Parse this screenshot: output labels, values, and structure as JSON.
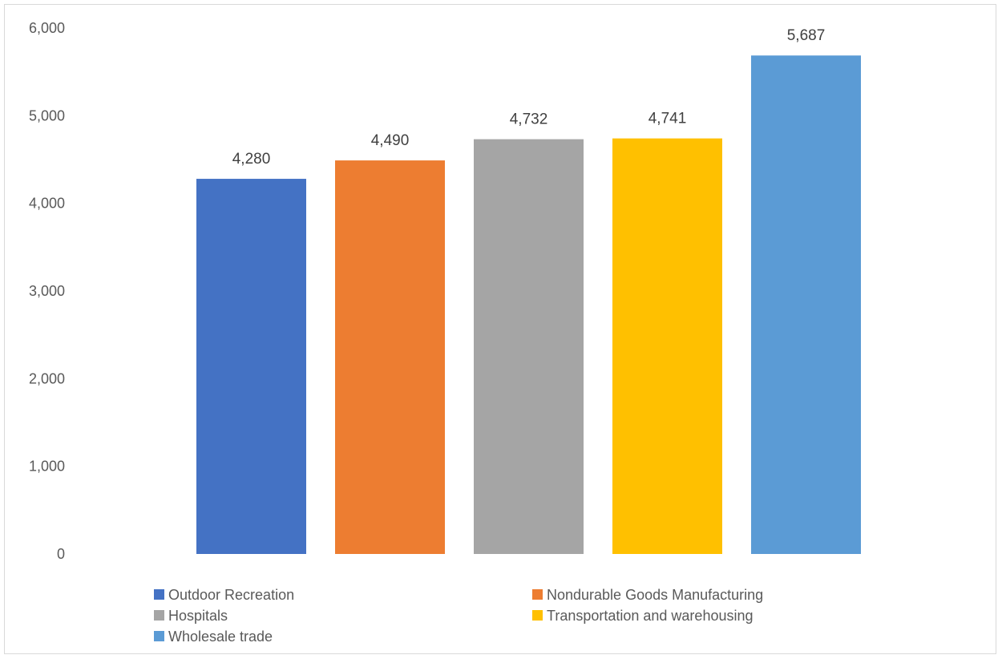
{
  "chart_data": {
    "type": "bar",
    "title": "",
    "xlabel": "",
    "ylabel": "",
    "categories": [
      "Outdoor Recreation",
      "Nondurable Goods Manufacturing",
      "Hospitals",
      "Transportation and warehousing",
      "Wholesale trade"
    ],
    "values": [
      4280,
      4490,
      4732,
      4741,
      5687
    ],
    "value_labels": [
      "4,280",
      "4,490",
      "4,732",
      "4,741",
      "5,687"
    ],
    "colors": [
      "#4472C4",
      "#ED7D31",
      "#A5A5A5",
      "#FFC000",
      "#5B9BD5"
    ],
    "ylim": [
      0,
      6000
    ],
    "yticks": [
      0,
      1000,
      2000,
      3000,
      4000,
      5000,
      6000
    ],
    "ytick_labels": [
      "0",
      "1,000",
      "2,000",
      "3,000",
      "4,000",
      "5,000",
      "6,000"
    ],
    "grid": false,
    "legend": {
      "position": "bottom",
      "entries": [
        "Outdoor Recreation",
        "Nondurable Goods Manufacturing",
        "Hospitals",
        "Transportation and warehousing",
        "Wholesale trade"
      ]
    }
  }
}
